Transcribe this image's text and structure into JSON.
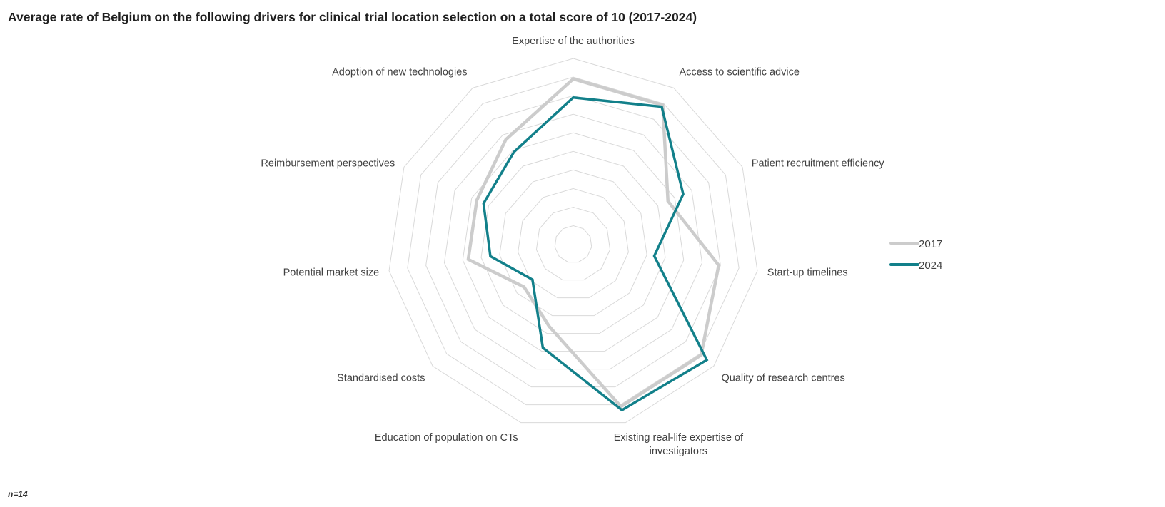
{
  "chart_data": {
    "type": "radar",
    "title": "Average rate of Belgium on the following drivers for clinical trial location selection on a total score of 10 (2017-2024)",
    "categories": [
      "Expertise of the authorities",
      "Access to scientific advice",
      "Patient recruitment efficiency",
      "Start-up timelines",
      "Quality of research centres",
      "Existing real-life expertise of investigators",
      "Education of population on CTs",
      "Standardised costs",
      "Potential market size",
      "Reimbursement perspectives",
      "Adoption of new technologies"
    ],
    "rlim": [
      0,
      10
    ],
    "grid": true,
    "legend_position": "right",
    "series": [
      {
        "name": "2017",
        "color": "#cccccc",
        "values": [
          8.9,
          8.9,
          5.6,
          7.9,
          9.1,
          9.1,
          4.6,
          3.5,
          5.7,
          5.7,
          6.7
        ]
      },
      {
        "name": "2024",
        "color": "#12808a",
        "values": [
          7.9,
          8.8,
          6.5,
          4.4,
          9.5,
          9.3,
          5.8,
          2.9,
          4.5,
          5.3,
          5.9
        ]
      }
    ],
    "note": "n=14"
  }
}
